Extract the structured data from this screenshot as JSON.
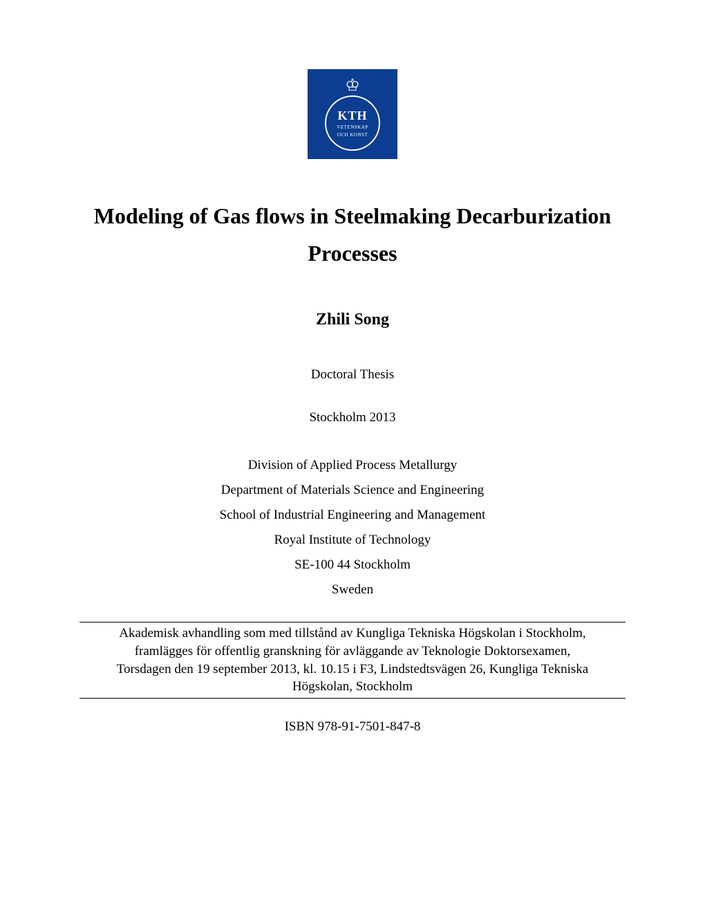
{
  "logo": {
    "main_text": "KTH",
    "sub_line1": "VETENSKAP",
    "sub_line2": "OCH KONST",
    "background_color": "#0b3d91",
    "text_color": "#ffffff"
  },
  "title": "Modeling of Gas flows in Steelmaking Decarburization Processes",
  "author": "Zhili Song",
  "thesis_type": "Doctoral Thesis",
  "location_year": "Stockholm 2013",
  "affiliation": {
    "division": "Division of Applied Process Metallurgy",
    "department": "Department of Materials Science and Engineering",
    "school": "School of Industrial Engineering and Management",
    "institute": "Royal Institute of Technology",
    "postal": "SE-100 44 Stockholm",
    "country": "Sweden"
  },
  "defense": {
    "line1": "Akademisk avhandling som med tillstånd av Kungliga Tekniska Högskolan i Stockholm,",
    "line2": "framlägges för offentlig granskning för avläggande av Teknologie Doktorsexamen,",
    "line3": "Torsdagen den 19 september 2013, kl. 10.15 i F3, Lindstedtsvägen 26, Kungliga Tekniska",
    "line4": "Högskolan, Stockholm"
  },
  "isbn": "ISBN 978-91-7501-847-8",
  "styling": {
    "page_background": "#ffffff",
    "text_color": "#000000",
    "title_fontsize": 32,
    "author_fontsize": 24,
    "body_fontsize": 19,
    "font_family": "Times New Roman"
  }
}
